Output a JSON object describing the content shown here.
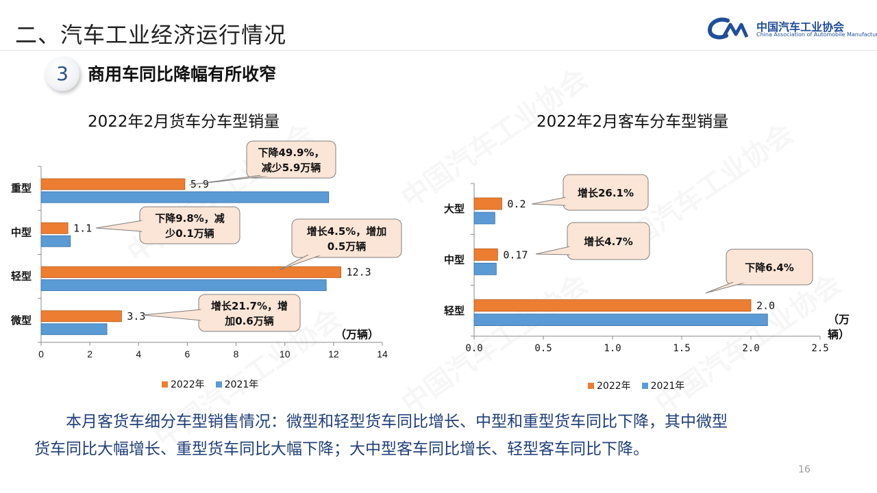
{
  "header": {
    "section_title": "二、汽车工业经济运行情况",
    "logo_name": "中国汽车工业协会",
    "logo_en": "China Association of Automobile Manufacturers",
    "section_number": "3",
    "subtitle": "商用车同比降幅有所收窄"
  },
  "colors": {
    "series_2022": "#ed7d31",
    "series_2021": "#5b9bd5",
    "callout_fill": "#fbe5d6",
    "callout_stroke": "#7f7f7f",
    "summary_text": "#1f3f7a"
  },
  "chart_data": [
    {
      "type": "bar",
      "orientation": "horizontal",
      "title": "2022年2月货车分车型销量",
      "categories": [
        "重型",
        "中型",
        "轻型",
        "微型"
      ],
      "series": [
        {
          "name": "2022年",
          "values": [
            5.9,
            1.1,
            12.3,
            3.3
          ]
        },
        {
          "name": "2021年",
          "values": [
            11.8,
            1.2,
            11.7,
            2.7
          ]
        }
      ],
      "data_labels": [
        "5.9",
        "1.1",
        "12.3",
        "3.3"
      ],
      "unit": "（万辆）",
      "xlim": [
        0,
        14
      ],
      "xticks": [
        "0",
        "2",
        "4",
        "6",
        "8",
        "10",
        "12",
        "14"
      ],
      "callouts": [
        {
          "category": "重型",
          "text": [
            "下降49.9%，",
            "减少5.9万辆"
          ]
        },
        {
          "category": "中型",
          "text": [
            "下降9.8%，减",
            "少0.1万辆"
          ]
        },
        {
          "category": "轻型",
          "text": [
            "增长4.5%，增加",
            "0.5万辆"
          ]
        },
        {
          "category": "微型",
          "text": [
            "增长21.7%，增",
            "加0.6万辆"
          ]
        }
      ],
      "legend_position": "bottom"
    },
    {
      "type": "bar",
      "orientation": "horizontal",
      "title": "2022年2月客车分车型销量",
      "categories": [
        "大型",
        "中型",
        "轻型"
      ],
      "series": [
        {
          "name": "2022年",
          "values": [
            0.2,
            0.17,
            2.0
          ]
        },
        {
          "name": "2021年",
          "values": [
            0.15,
            0.16,
            2.12
          ]
        }
      ],
      "data_labels": [
        "0.2",
        "0.17",
        "2.0"
      ],
      "unit": [
        "（万",
        "辆）"
      ],
      "xlim": [
        0,
        2.5
      ],
      "xticks": [
        "0.0",
        "0.5",
        "1.0",
        "1.5",
        "2.0",
        "2.5"
      ],
      "callouts": [
        {
          "category": "大型",
          "text": [
            "增长26.1%"
          ]
        },
        {
          "category": "中型",
          "text": [
            "增长4.7%"
          ]
        },
        {
          "category": "轻型",
          "text": [
            "下降6.4%"
          ]
        }
      ],
      "legend_position": "bottom"
    }
  ],
  "summary": {
    "line1": "本月客货车细分车型销售情况：微型和轻型货车同比增长、中型和重型货车同比下降，其中微型",
    "line2": "货车同比大幅增长、重型货车同比大幅下降；大中型客车同比增长、轻型客车同比下降。"
  },
  "page_number": "16"
}
